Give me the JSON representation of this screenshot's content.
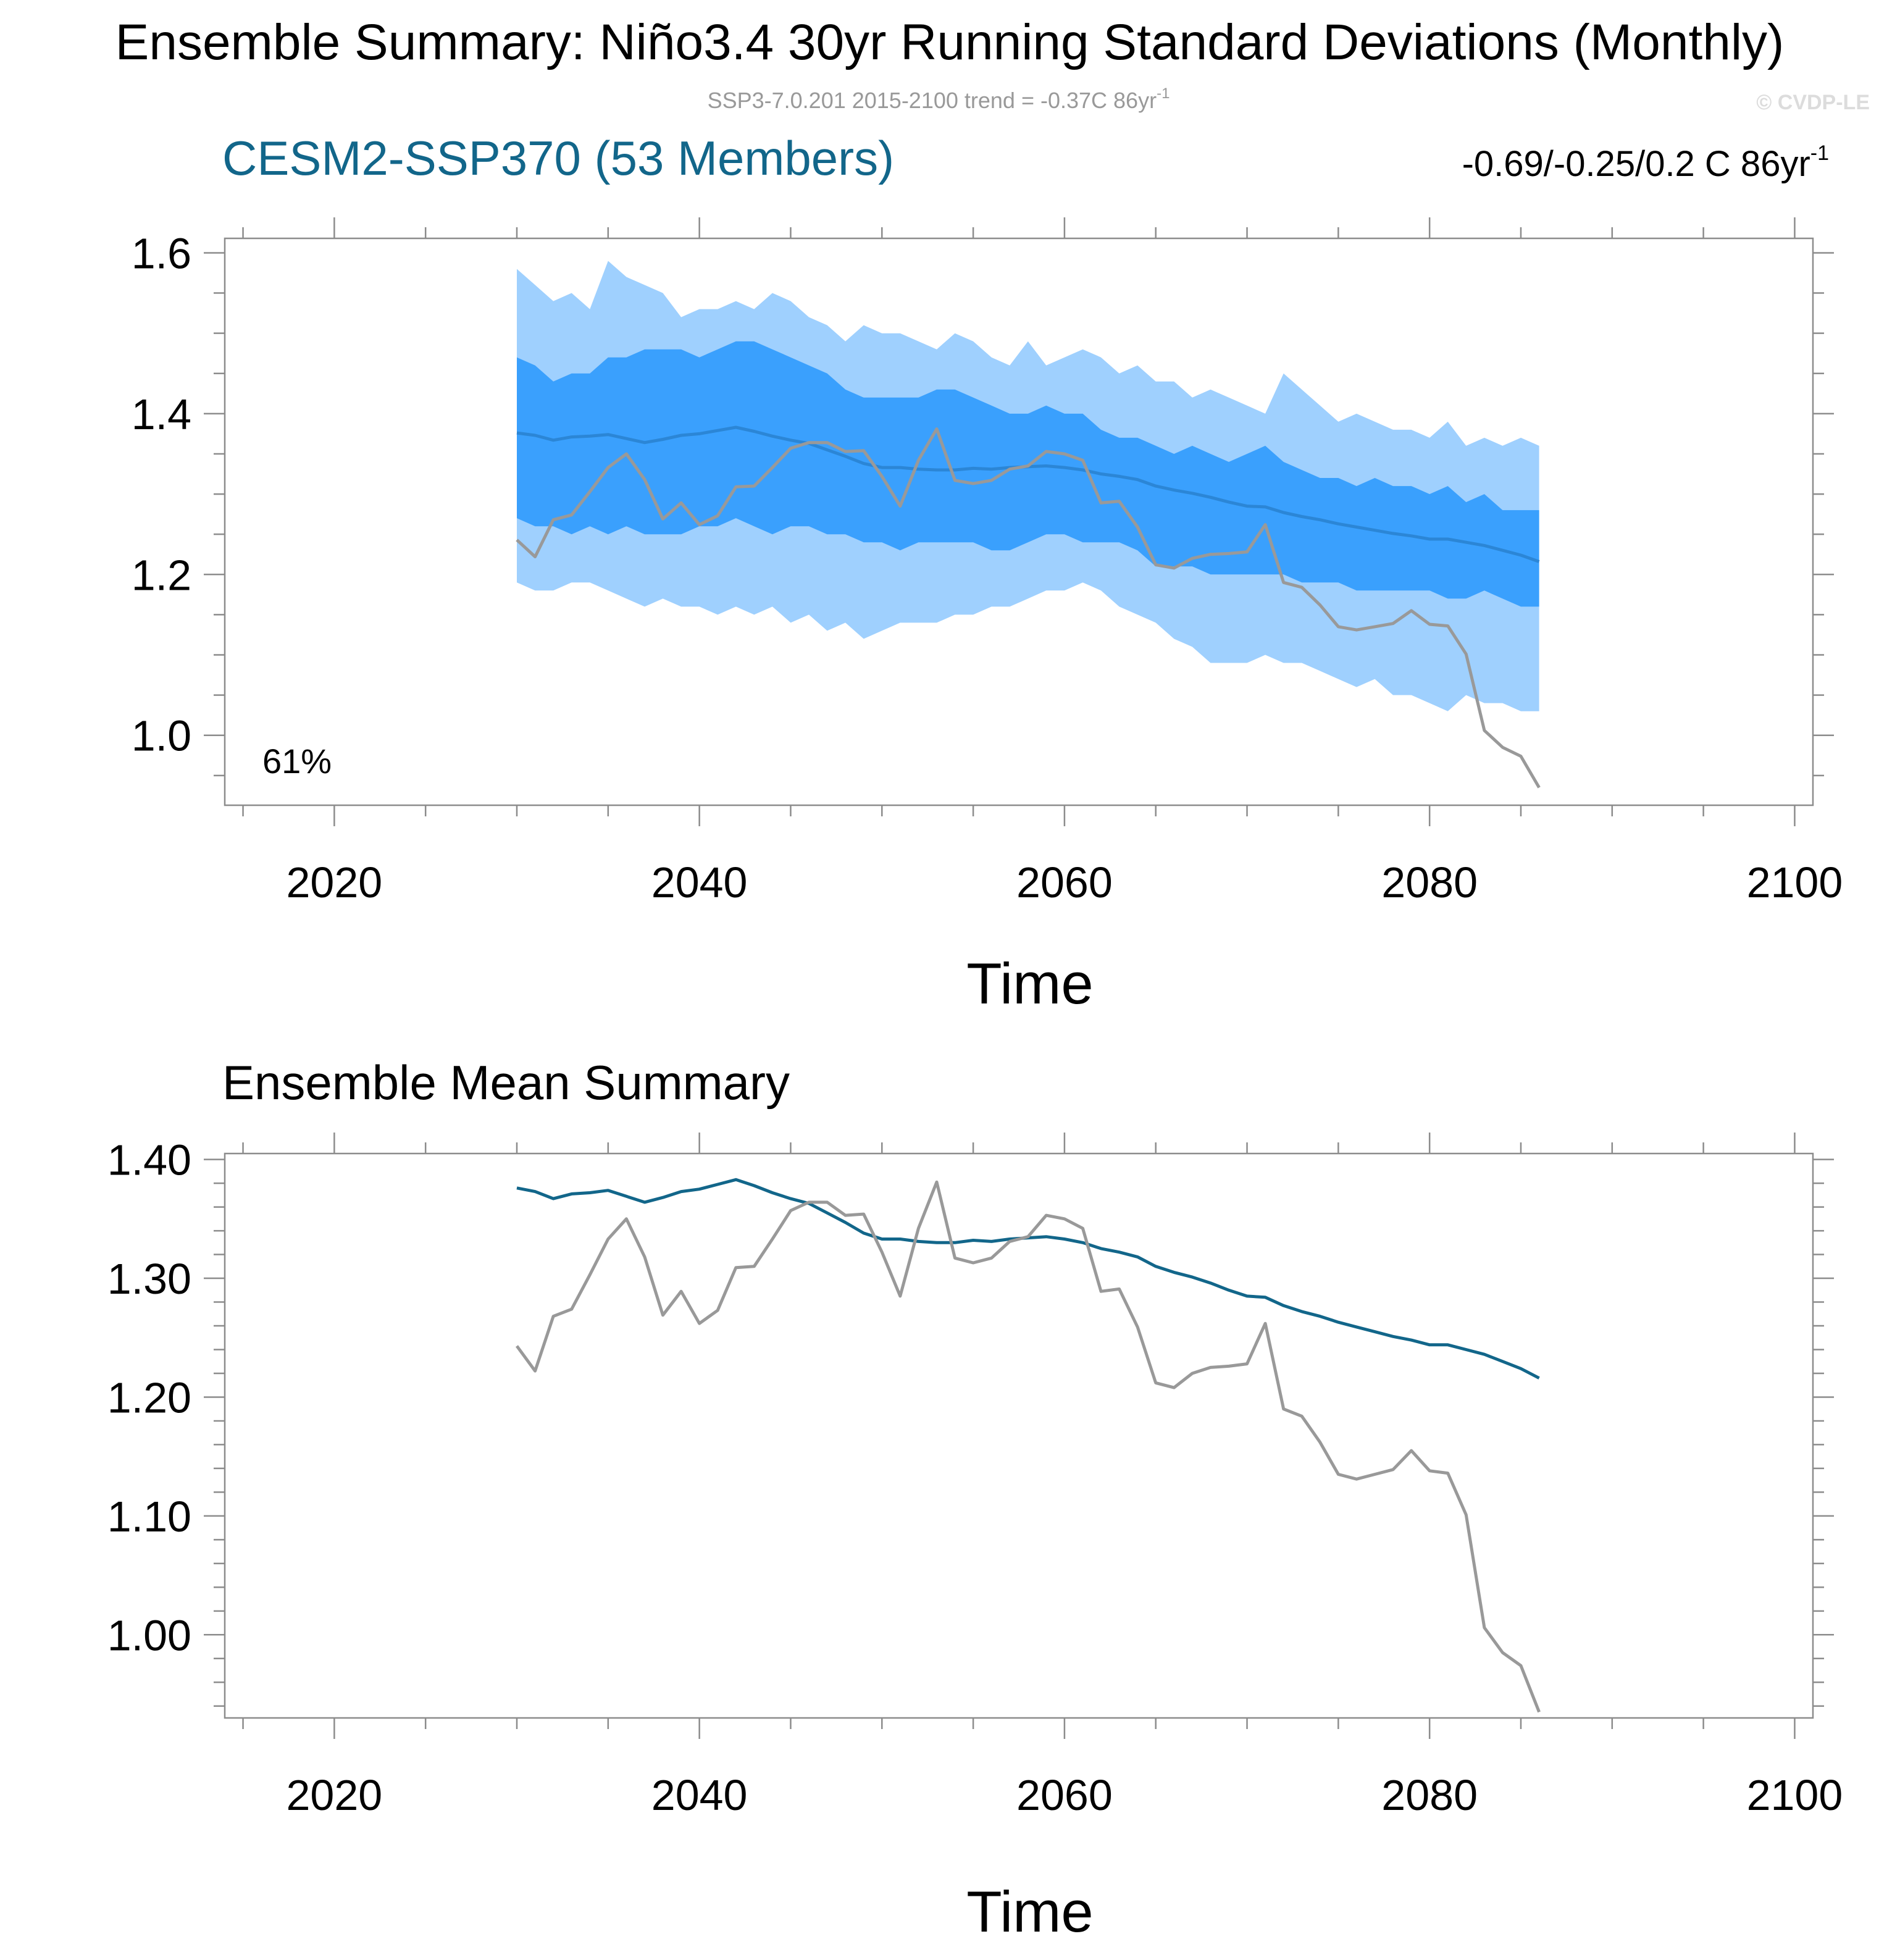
{
  "title": "Ensemble Summary: Niño3.4 30yr Running Standard Deviations (Monthly)",
  "subtitle": {
    "text": "SSP3-7.0.201 2015-2100 trend = -0.37C 86yr",
    "sup": "-1"
  },
  "copyright": "© CVDP-LE",
  "colors": {
    "title_blue": "#12668a",
    "band_outer": "#9fd0fe",
    "band_inner": "#3aa0fd",
    "mean_top": "#2b86d6",
    "mean_bottom": "#12668a",
    "obs": "#999999",
    "axis": "#8c8c8c"
  },
  "chart_data": [
    {
      "type": "area",
      "panel_title": "CESM2-SSP370 (53 Members)",
      "trend_text": "-0.69/-0.25/0.2 C 86yr",
      "trend_sup": "-1",
      "percent_label": "61%",
      "xlabel": "Time",
      "xlim": [
        2014,
        2101
      ],
      "ylim": [
        0.913,
        1.618
      ],
      "xticks": [
        2020,
        2040,
        2060,
        2080,
        2100
      ],
      "yticks": [
        "1.0",
        "1.2",
        "1.4",
        "1.6"
      ],
      "x": [
        2030,
        2031,
        2032,
        2033,
        2034,
        2035,
        2036,
        2037,
        2038,
        2039,
        2040,
        2041,
        2042,
        2043,
        2044,
        2045,
        2046,
        2047,
        2048,
        2049,
        2050,
        2051,
        2052,
        2053,
        2054,
        2055,
        2056,
        2057,
        2058,
        2059,
        2060,
        2061,
        2062,
        2063,
        2064,
        2065,
        2066,
        2067,
        2068,
        2069,
        2070,
        2071,
        2072,
        2073,
        2074,
        2075,
        2076,
        2077,
        2078,
        2079,
        2080,
        2081,
        2082,
        2083,
        2084,
        2085,
        2086
      ],
      "series": [
        {
          "role": "outer_upper",
          "values": [
            1.58,
            1.56,
            1.54,
            1.55,
            1.53,
            1.59,
            1.57,
            1.56,
            1.55,
            1.52,
            1.53,
            1.53,
            1.54,
            1.53,
            1.55,
            1.54,
            1.52,
            1.51,
            1.49,
            1.51,
            1.5,
            1.5,
            1.49,
            1.48,
            1.5,
            1.49,
            1.47,
            1.46,
            1.49,
            1.46,
            1.47,
            1.48,
            1.47,
            1.45,
            1.46,
            1.44,
            1.44,
            1.42,
            1.43,
            1.42,
            1.41,
            1.4,
            1.45,
            1.43,
            1.41,
            1.39,
            1.4,
            1.39,
            1.38,
            1.38,
            1.37,
            1.39,
            1.36,
            1.37,
            1.36,
            1.37,
            1.36
          ]
        },
        {
          "role": "inner_upper",
          "values": [
            1.47,
            1.46,
            1.44,
            1.45,
            1.45,
            1.47,
            1.47,
            1.48,
            1.48,
            1.48,
            1.47,
            1.48,
            1.49,
            1.49,
            1.48,
            1.47,
            1.46,
            1.45,
            1.43,
            1.42,
            1.42,
            1.42,
            1.42,
            1.43,
            1.43,
            1.42,
            1.41,
            1.4,
            1.4,
            1.41,
            1.4,
            1.4,
            1.38,
            1.37,
            1.37,
            1.36,
            1.35,
            1.36,
            1.35,
            1.34,
            1.35,
            1.36,
            1.34,
            1.33,
            1.32,
            1.32,
            1.31,
            1.32,
            1.31,
            1.31,
            1.3,
            1.31,
            1.29,
            1.3,
            1.28,
            1.28,
            1.28
          ]
        },
        {
          "role": "mean",
          "values": [
            1.376,
            1.373,
            1.367,
            1.371,
            1.372,
            1.374,
            1.369,
            1.364,
            1.368,
            1.373,
            1.375,
            1.379,
            1.383,
            1.378,
            1.372,
            1.367,
            1.363,
            1.355,
            1.347,
            1.338,
            1.333,
            1.333,
            1.331,
            1.33,
            1.33,
            1.332,
            1.331,
            1.333,
            1.334,
            1.335,
            1.333,
            1.33,
            1.325,
            1.322,
            1.318,
            1.31,
            1.305,
            1.301,
            1.296,
            1.29,
            1.285,
            1.284,
            1.277,
            1.272,
            1.268,
            1.263,
            1.259,
            1.255,
            1.251,
            1.248,
            1.244,
            1.244,
            1.24,
            1.236,
            1.23,
            1.224,
            1.216
          ]
        },
        {
          "role": "inner_lower",
          "values": [
            1.27,
            1.26,
            1.26,
            1.25,
            1.26,
            1.25,
            1.26,
            1.25,
            1.25,
            1.25,
            1.26,
            1.26,
            1.27,
            1.26,
            1.25,
            1.26,
            1.26,
            1.25,
            1.25,
            1.24,
            1.24,
            1.23,
            1.24,
            1.24,
            1.24,
            1.24,
            1.23,
            1.23,
            1.24,
            1.25,
            1.25,
            1.24,
            1.24,
            1.24,
            1.23,
            1.21,
            1.21,
            1.21,
            1.2,
            1.2,
            1.2,
            1.2,
            1.2,
            1.19,
            1.19,
            1.19,
            1.18,
            1.18,
            1.18,
            1.18,
            1.18,
            1.17,
            1.17,
            1.18,
            1.17,
            1.16,
            1.16
          ]
        },
        {
          "role": "outer_lower",
          "values": [
            1.19,
            1.18,
            1.18,
            1.19,
            1.19,
            1.18,
            1.17,
            1.16,
            1.17,
            1.16,
            1.16,
            1.15,
            1.16,
            1.15,
            1.16,
            1.14,
            1.15,
            1.13,
            1.14,
            1.12,
            1.13,
            1.14,
            1.14,
            1.14,
            1.15,
            1.15,
            1.16,
            1.16,
            1.17,
            1.18,
            1.18,
            1.19,
            1.18,
            1.16,
            1.15,
            1.14,
            1.12,
            1.11,
            1.09,
            1.09,
            1.09,
            1.1,
            1.09,
            1.09,
            1.08,
            1.07,
            1.06,
            1.07,
            1.05,
            1.05,
            1.04,
            1.03,
            1.05,
            1.04,
            1.04,
            1.03,
            1.03
          ]
        },
        {
          "role": "observed",
          "values": [
            1.243,
            1.222,
            1.268,
            1.274,
            1.303,
            1.333,
            1.35,
            1.318,
            1.269,
            1.289,
            1.262,
            1.273,
            1.309,
            1.31,
            1.333,
            1.357,
            1.364,
            1.364,
            1.353,
            1.354,
            1.322,
            1.285,
            1.342,
            1.381,
            1.317,
            1.313,
            1.317,
            1.331,
            1.335,
            1.353,
            1.35,
            1.342,
            1.289,
            1.291,
            1.259,
            1.212,
            1.208,
            1.22,
            1.225,
            1.226,
            1.228,
            1.262,
            1.19,
            1.184,
            1.162,
            1.135,
            1.131,
            1.135,
            1.139,
            1.155,
            1.138,
            1.136,
            1.101,
            1.006,
            0.985,
            0.974,
            0.935
          ]
        }
      ]
    },
    {
      "type": "line",
      "panel_title": "Ensemble Mean Summary",
      "xlabel": "Time",
      "xlim": [
        2014,
        2101
      ],
      "ylim": [
        0.93,
        1.405
      ],
      "xticks": [
        2020,
        2040,
        2060,
        2080,
        2100
      ],
      "yticks": [
        "1.00",
        "1.10",
        "1.20",
        "1.30",
        "1.40"
      ],
      "x": [
        2030,
        2031,
        2032,
        2033,
        2034,
        2035,
        2036,
        2037,
        2038,
        2039,
        2040,
        2041,
        2042,
        2043,
        2044,
        2045,
        2046,
        2047,
        2048,
        2049,
        2050,
        2051,
        2052,
        2053,
        2054,
        2055,
        2056,
        2057,
        2058,
        2059,
        2060,
        2061,
        2062,
        2063,
        2064,
        2065,
        2066,
        2067,
        2068,
        2069,
        2070,
        2071,
        2072,
        2073,
        2074,
        2075,
        2076,
        2077,
        2078,
        2079,
        2080,
        2081,
        2082,
        2083,
        2084,
        2085,
        2086
      ],
      "series": [
        {
          "role": "mean",
          "values": [
            1.376,
            1.373,
            1.367,
            1.371,
            1.372,
            1.374,
            1.369,
            1.364,
            1.368,
            1.373,
            1.375,
            1.379,
            1.383,
            1.378,
            1.372,
            1.367,
            1.363,
            1.355,
            1.347,
            1.338,
            1.333,
            1.333,
            1.331,
            1.33,
            1.33,
            1.332,
            1.331,
            1.333,
            1.334,
            1.335,
            1.333,
            1.33,
            1.325,
            1.322,
            1.318,
            1.31,
            1.305,
            1.301,
            1.296,
            1.29,
            1.285,
            1.284,
            1.277,
            1.272,
            1.268,
            1.263,
            1.259,
            1.255,
            1.251,
            1.248,
            1.244,
            1.244,
            1.24,
            1.236,
            1.23,
            1.224,
            1.216
          ]
        },
        {
          "role": "observed",
          "values": [
            1.243,
            1.222,
            1.268,
            1.274,
            1.303,
            1.333,
            1.35,
            1.318,
            1.269,
            1.289,
            1.262,
            1.273,
            1.309,
            1.31,
            1.333,
            1.357,
            1.364,
            1.364,
            1.353,
            1.354,
            1.322,
            1.285,
            1.342,
            1.381,
            1.317,
            1.313,
            1.317,
            1.331,
            1.335,
            1.353,
            1.35,
            1.342,
            1.289,
            1.291,
            1.259,
            1.212,
            1.208,
            1.22,
            1.225,
            1.226,
            1.228,
            1.262,
            1.19,
            1.184,
            1.162,
            1.135,
            1.131,
            1.135,
            1.139,
            1.155,
            1.138,
            1.136,
            1.101,
            1.006,
            0.985,
            0.974,
            0.935
          ]
        }
      ]
    }
  ]
}
